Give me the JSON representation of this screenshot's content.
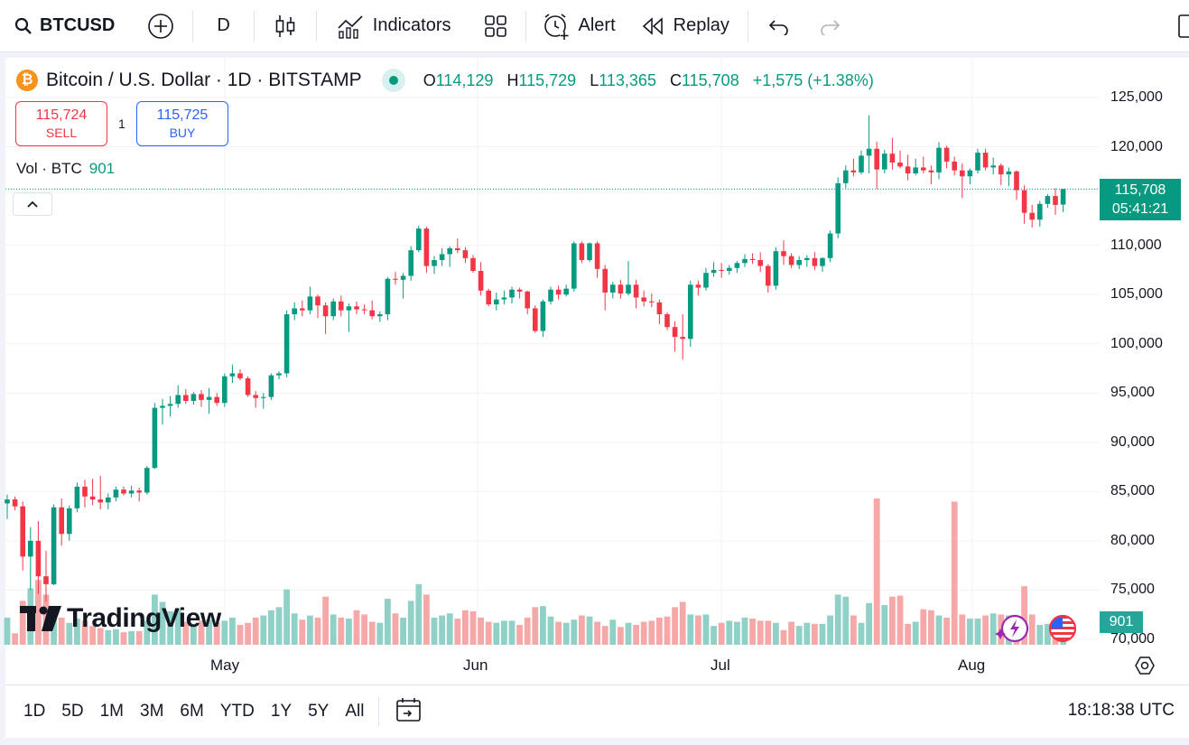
{
  "toolbar": {
    "symbol": "BTCUSD",
    "interval": "D",
    "indicators_label": "Indicators",
    "alert_label": "Alert",
    "replay_label": "Replay"
  },
  "legend": {
    "title": "Bitcoin / U.S. Dollar · 1D · BITSTAMP",
    "logo_glyph": "₿",
    "o_key": "O",
    "o_val": "114,129",
    "h_key": "H",
    "h_val": "115,729",
    "l_key": "L",
    "l_val": "113,365",
    "c_key": "C",
    "c_val": "115,708",
    "change": "+1,575 (+1.38%)"
  },
  "trade": {
    "sell_price": "115,724",
    "sell_label": "SELL",
    "buy_price": "115,725",
    "buy_label": "BUY",
    "quantity": "1"
  },
  "volume_legend": {
    "label": "Vol · BTC",
    "value": "901"
  },
  "price_scale": {
    "labels": [
      "125,000",
      "120,000",
      "110,000",
      "105,000",
      "100,000",
      "95,000",
      "90,000",
      "85,000",
      "80,000",
      "75,000",
      "70,000"
    ],
    "current_price": "115,708",
    "countdown": "05:41:21",
    "volume_tag": "901"
  },
  "time_axis": {
    "labels": [
      "May",
      "Jun",
      "Jul",
      "Aug"
    ]
  },
  "bottom_bar": {
    "ranges": [
      "1D",
      "5D",
      "1M",
      "3M",
      "6M",
      "YTD",
      "1Y",
      "5Y",
      "All"
    ],
    "time": "18:18:38 UTC"
  },
  "branding": {
    "logo_text": "TradingView",
    "logo_mark": "17"
  },
  "colors": {
    "up": "#089981",
    "down": "#f23645",
    "vol_up": "#8fd1c6",
    "vol_down": "#f6a8a8",
    "accent": "#2962ff"
  },
  "chart_data": {
    "type": "candlestick",
    "y_min": 70000,
    "y_max": 126000,
    "candles": [
      [
        83800,
        84700,
        82200,
        84200
      ],
      [
        84200,
        84500,
        83100,
        83500
      ],
      [
        83500,
        84000,
        77000,
        78400
      ],
      [
        78400,
        81400,
        75000,
        80000
      ],
      [
        80000,
        82000,
        74600,
        76400
      ],
      [
        76400,
        79000,
        73800,
        75600
      ],
      [
        75600,
        83700,
        75500,
        83400
      ],
      [
        83400,
        84300,
        79500,
        80700
      ],
      [
        80700,
        83600,
        80000,
        83300
      ],
      [
        83300,
        85900,
        82900,
        85500
      ],
      [
        85500,
        86200,
        83400,
        84500
      ],
      [
        84500,
        86300,
        83600,
        84200
      ],
      [
        84200,
        86600,
        83200,
        83900
      ],
      [
        83900,
        84800,
        83200,
        84400
      ],
      [
        84400,
        85500,
        84000,
        85200
      ],
      [
        85200,
        85500,
        84600,
        84800
      ],
      [
        84800,
        85600,
        84400,
        85100
      ],
      [
        85100,
        85400,
        84000,
        84900
      ],
      [
        84900,
        87600,
        84700,
        87400
      ],
      [
        87400,
        94000,
        87300,
        93500
      ],
      [
        93500,
        94400,
        91800,
        93700
      ],
      [
        93700,
        94700,
        92600,
        93900
      ],
      [
        93900,
        95800,
        93500,
        94800
      ],
      [
        94800,
        95400,
        93900,
        94200
      ],
      [
        94200,
        95100,
        93800,
        94900
      ],
      [
        94900,
        95300,
        93600,
        94300
      ],
      [
        94300,
        95500,
        92900,
        94600
      ],
      [
        94600,
        95000,
        93700,
        94000
      ],
      [
        94000,
        97000,
        93600,
        96700
      ],
      [
        96700,
        97900,
        96000,
        97000
      ],
      [
        97000,
        97400,
        96300,
        96500
      ],
      [
        96500,
        96700,
        94600,
        94800
      ],
      [
        94800,
        95200,
        93500,
        94500
      ],
      [
        94500,
        95000,
        93400,
        94600
      ],
      [
        94600,
        97000,
        94300,
        96800
      ],
      [
        96800,
        97200,
        96400,
        97000
      ],
      [
        97000,
        103400,
        96600,
        103000
      ],
      [
        103000,
        104200,
        102400,
        103600
      ],
      [
        103600,
        104400,
        102800,
        103400
      ],
      [
        103400,
        105800,
        103000,
        104800
      ],
      [
        104800,
        105000,
        102600,
        103900
      ],
      [
        103900,
        104200,
        101000,
        102800
      ],
      [
        102800,
        104600,
        102400,
        104300
      ],
      [
        104300,
        104900,
        102800,
        103400
      ],
      [
        103400,
        104100,
        101200,
        103800
      ],
      [
        103800,
        104300,
        103000,
        103500
      ],
      [
        103500,
        104000,
        103000,
        103400
      ],
      [
        103400,
        104400,
        102500,
        102800
      ],
      [
        102800,
        103300,
        102200,
        103000
      ],
      [
        103000,
        106800,
        102400,
        106600
      ],
      [
        106600,
        107300,
        106000,
        106500
      ],
      [
        106500,
        107200,
        104600,
        106900
      ],
      [
        106900,
        109900,
        106400,
        109500
      ],
      [
        109500,
        112000,
        109300,
        111700
      ],
      [
        111700,
        111900,
        107200,
        107900
      ],
      [
        107900,
        108900,
        107100,
        108500
      ],
      [
        108500,
        109700,
        107900,
        109100
      ],
      [
        109100,
        109900,
        107800,
        109700
      ],
      [
        109700,
        110700,
        109200,
        109500
      ],
      [
        109500,
        109800,
        108200,
        108700
      ],
      [
        108700,
        109000,
        107200,
        107400
      ],
      [
        107400,
        108300,
        104900,
        105400
      ],
      [
        105400,
        105600,
        103800,
        104000
      ],
      [
        104000,
        105200,
        103400,
        104500
      ],
      [
        104500,
        105400,
        104000,
        104700
      ],
      [
        104700,
        105800,
        104100,
        105500
      ],
      [
        105500,
        105700,
        104600,
        105300
      ],
      [
        105300,
        105400,
        103000,
        103600
      ],
      [
        103600,
        103900,
        101100,
        101300
      ],
      [
        101300,
        104500,
        100700,
        104300
      ],
      [
        104300,
        105800,
        104000,
        105500
      ],
      [
        105500,
        105900,
        104500,
        105000
      ],
      [
        105000,
        106000,
        104800,
        105600
      ],
      [
        105600,
        110400,
        105300,
        110200
      ],
      [
        110200,
        110400,
        108200,
        108500
      ],
      [
        108500,
        110300,
        108300,
        110200
      ],
      [
        110200,
        110400,
        106700,
        107600
      ],
      [
        107600,
        108000,
        103400,
        105200
      ],
      [
        105200,
        106300,
        104600,
        106000
      ],
      [
        106000,
        106500,
        104600,
        105100
      ],
      [
        105100,
        108400,
        104900,
        106000
      ],
      [
        106000,
        106500,
        103600,
        104700
      ],
      [
        104700,
        105400,
        103800,
        104300
      ],
      [
        104300,
        105100,
        103700,
        104200
      ],
      [
        104200,
        104500,
        102000,
        103000
      ],
      [
        103000,
        103200,
        101400,
        101700
      ],
      [
        101700,
        102300,
        99200,
        100700
      ],
      [
        100700,
        103000,
        98400,
        100500
      ],
      [
        100500,
        106400,
        99700,
        106000
      ],
      [
        106000,
        106400,
        104900,
        105700
      ],
      [
        105700,
        107700,
        105400,
        107200
      ],
      [
        107200,
        108300,
        106800,
        107500
      ],
      [
        107500,
        108200,
        106700,
        107400
      ],
      [
        107400,
        108000,
        107000,
        107700
      ],
      [
        107700,
        108400,
        107200,
        108200
      ],
      [
        108200,
        109100,
        107800,
        108600
      ],
      [
        108600,
        109200,
        108100,
        108500
      ],
      [
        108500,
        109300,
        107300,
        107900
      ],
      [
        107900,
        108100,
        105200,
        105900
      ],
      [
        105900,
        109800,
        105500,
        109400
      ],
      [
        109400,
        110500,
        108000,
        108900
      ],
      [
        108900,
        109200,
        107700,
        108000
      ],
      [
        108000,
        108900,
        107600,
        108500
      ],
      [
        108500,
        109000,
        107800,
        108700
      ],
      [
        108700,
        109300,
        107500,
        107900
      ],
      [
        107900,
        108800,
        107300,
        108700
      ],
      [
        108700,
        111500,
        108300,
        111200
      ],
      [
        111200,
        116900,
        110700,
        116300
      ],
      [
        116300,
        118100,
        115800,
        117600
      ],
      [
        117600,
        118800,
        117000,
        117400
      ],
      [
        117400,
        119600,
        117200,
        119100
      ],
      [
        119100,
        123200,
        117300,
        119800
      ],
      [
        119800,
        120500,
        115700,
        117700
      ],
      [
        117700,
        119700,
        117300,
        119300
      ],
      [
        119300,
        120900,
        117700,
        118400
      ],
      [
        118400,
        119600,
        117800,
        118000
      ],
      [
        118000,
        119200,
        116600,
        117300
      ],
      [
        117300,
        118800,
        117100,
        117900
      ],
      [
        117900,
        119000,
        117300,
        117600
      ],
      [
        117600,
        118100,
        116200,
        117400
      ],
      [
        117400,
        120500,
        116700,
        119900
      ],
      [
        119900,
        120100,
        117800,
        118500
      ],
      [
        118500,
        119000,
        117100,
        117600
      ],
      [
        117600,
        118300,
        114800,
        117000
      ],
      [
        117000,
        117800,
        116200,
        117600
      ],
      [
        117600,
        119800,
        117300,
        119400
      ],
      [
        119400,
        119800,
        117600,
        117900
      ],
      [
        117900,
        118900,
        117200,
        118100
      ],
      [
        118100,
        118300,
        116100,
        117200
      ],
      [
        117200,
        117900,
        116000,
        117500
      ],
      [
        117500,
        117600,
        114600,
        115600
      ],
      [
        115600,
        116100,
        112200,
        113300
      ],
      [
        113300,
        114100,
        111800,
        112600
      ],
      [
        112600,
        114500,
        111900,
        114200
      ],
      [
        114200,
        115200,
        113800,
        115000
      ],
      [
        115000,
        115800,
        113100,
        114100
      ],
      [
        114129,
        115729,
        113365,
        115708
      ]
    ],
    "volumes": [
      2600,
      1100,
      4200,
      5400,
      6200,
      4800,
      3500,
      2600,
      2100,
      2500,
      2300,
      1800,
      1600,
      1400,
      1500,
      1200,
      1300,
      1300,
      2300,
      4800,
      4100,
      3200,
      3400,
      2200,
      2000,
      2300,
      2400,
      2100,
      2300,
      2600,
      1900,
      2100,
      2600,
      2800,
      3300,
      3600,
      5300,
      3000,
      2400,
      2800,
      2600,
      4600,
      2900,
      2600,
      2500,
      3300,
      2900,
      2200,
      2100,
      4400,
      3000,
      2600,
      4200,
      5800,
      4800,
      2600,
      2800,
      3000,
      2500,
      3300,
      3200,
      2600,
      2200,
      2100,
      2300,
      2300,
      1900,
      2600,
      3600,
      3700,
      2700,
      2200,
      2100,
      2400,
      2800,
      2700,
      2200,
      1800,
      2400,
      1700,
      2100,
      1900,
      2200,
      2300,
      2600,
      2700,
      3600,
      4100,
      2900,
      2800,
      2900,
      1800,
      2100,
      2300,
      2200,
      2600,
      2500,
      2300,
      2300,
      2100,
      1400,
      2200,
      1800,
      2100,
      2000,
      2000,
      2800,
      4800,
      4600,
      2800,
      2100,
      4000,
      14000,
      3800,
      4600,
      4700,
      2000,
      2200,
      3400,
      3300,
      2800,
      2600,
      13700,
      2900,
      2500,
      2500,
      2800,
      3000,
      2900,
      2800,
      2700,
      5600,
      2900,
      1900,
      2000,
      2300,
      901
    ]
  }
}
